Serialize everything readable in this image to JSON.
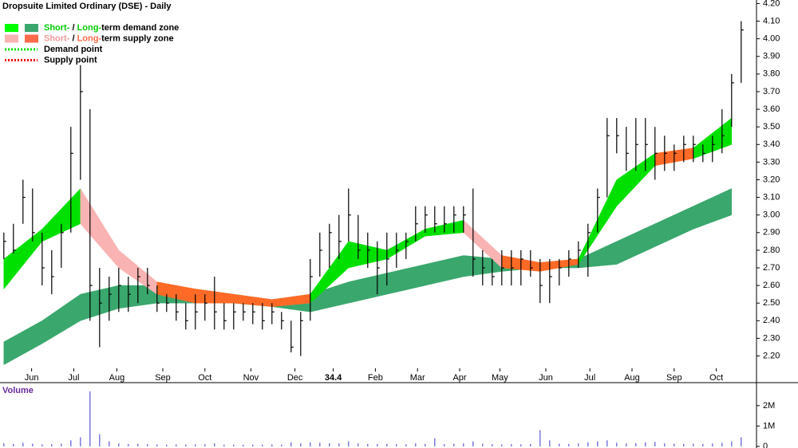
{
  "chart_data": [
    {
      "type": "ohlc",
      "title": "Dropsuite Limited Ordinary (DSE) - Daily",
      "legend": [
        {
          "swatches": [
            "#00ff00",
            "#3aa76d"
          ],
          "parts": [
            {
              "text": "Short-",
              "color": "#00cc00"
            },
            {
              "text": " / ",
              "color": "#000000"
            },
            {
              "text": "Long-",
              "color": "#00cc00"
            },
            {
              "text": "term demand zone",
              "color": "#000000"
            }
          ]
        },
        {
          "swatches": [
            "#f9b3b3",
            "#ff6a4a"
          ],
          "parts": [
            {
              "text": "Short-",
              "color": "#f49a9a"
            },
            {
              "text": " / ",
              "color": "#000000"
            },
            {
              "text": "Long-",
              "color": "#ff6a4a"
            },
            {
              "text": "term supply zone",
              "color": "#000000"
            }
          ]
        },
        {
          "dotted": "#00dd00",
          "parts": [
            {
              "text": "Demand point",
              "color": "#000000"
            }
          ]
        },
        {
          "dotted": "#ee0000",
          "parts": [
            {
              "text": "Supply point",
              "color": "#000000"
            }
          ]
        }
      ],
      "x": [
        0,
        1,
        2,
        3,
        4,
        5,
        6,
        7,
        8,
        9,
        10,
        11,
        12,
        13,
        14,
        15,
        16,
        17,
        18,
        19,
        20,
        21,
        22,
        23,
        24,
        25,
        26,
        27,
        28,
        29,
        30,
        31,
        32,
        33,
        34,
        35,
        36,
        37,
        38,
        39,
        40,
        41,
        42,
        43,
        44,
        45,
        46,
        47,
        48,
        49,
        50,
        51,
        52,
        53,
        54,
        55,
        56,
        57,
        58,
        59,
        60,
        61,
        62,
        63,
        64,
        65,
        66,
        67,
        68,
        69,
        70,
        71,
        72,
        73,
        74,
        75,
        76,
        77
      ],
      "high": [
        2.9,
        2.95,
        3.2,
        3.15,
        2.9,
        2.8,
        2.95,
        3.5,
        3.85,
        3.6,
        2.7,
        2.65,
        2.7,
        2.65,
        2.7,
        2.7,
        2.6,
        2.55,
        2.55,
        2.5,
        2.55,
        2.55,
        2.65,
        2.5,
        2.5,
        2.5,
        2.5,
        2.5,
        2.5,
        2.45,
        2.4,
        2.45,
        2.75,
        2.9,
        2.95,
        3.0,
        3.15,
        3.0,
        2.9,
        2.85,
        2.9,
        2.9,
        2.9,
        3.05,
        3.05,
        3.05,
        3.05,
        3.05,
        3.05,
        3.15,
        2.8,
        2.75,
        2.8,
        2.8,
        2.8,
        2.8,
        2.75,
        2.75,
        2.75,
        2.8,
        2.85,
        2.95,
        3.15,
        3.55,
        3.55,
        3.5,
        3.55,
        3.55,
        3.5,
        3.45,
        3.4,
        3.45,
        3.45,
        3.4,
        3.45,
        3.6,
        3.8,
        4.1
      ],
      "low": [
        2.75,
        2.78,
        2.95,
        2.85,
        2.6,
        2.55,
        2.7,
        2.9,
        3.2,
        2.4,
        2.25,
        2.4,
        2.45,
        2.45,
        2.5,
        2.55,
        2.45,
        2.45,
        2.4,
        2.35,
        2.35,
        2.4,
        2.35,
        2.35,
        2.35,
        2.4,
        2.38,
        2.35,
        2.38,
        2.35,
        2.22,
        2.2,
        2.4,
        2.65,
        2.7,
        2.75,
        2.85,
        2.75,
        2.7,
        2.55,
        2.6,
        2.7,
        2.75,
        2.85,
        2.9,
        2.9,
        2.9,
        2.9,
        2.9,
        2.65,
        2.6,
        2.6,
        2.6,
        2.6,
        2.6,
        2.65,
        2.5,
        2.5,
        2.6,
        2.65,
        2.7,
        2.65,
        2.9,
        3.1,
        3.35,
        3.25,
        3.25,
        3.25,
        3.2,
        3.25,
        3.25,
        3.3,
        3.3,
        3.3,
        3.3,
        3.35,
        3.5,
        3.75
      ],
      "close": [
        2.85,
        2.8,
        3.1,
        2.9,
        2.7,
        2.65,
        2.9,
        3.35,
        3.7,
        2.6,
        2.5,
        2.55,
        2.6,
        2.55,
        2.65,
        2.6,
        2.5,
        2.5,
        2.45,
        2.4,
        2.45,
        2.5,
        2.45,
        2.4,
        2.45,
        2.45,
        2.45,
        2.4,
        2.45,
        2.4,
        2.25,
        2.4,
        2.65,
        2.8,
        2.9,
        2.85,
        3.0,
        2.8,
        2.8,
        2.7,
        2.75,
        2.8,
        2.85,
        2.95,
        3.0,
        2.95,
        2.95,
        3.0,
        3.0,
        2.75,
        2.7,
        2.65,
        2.7,
        2.7,
        2.75,
        2.7,
        2.6,
        2.65,
        2.7,
        2.75,
        2.8,
        2.9,
        3.1,
        3.45,
        3.45,
        3.35,
        3.4,
        3.4,
        3.35,
        3.35,
        3.35,
        3.4,
        3.4,
        3.35,
        3.4,
        3.45,
        3.75,
        4.05
      ],
      "zones": [
        {
          "x": [
            0,
            4,
            8,
            12,
            16,
            20,
            24,
            28,
            32,
            36,
            40,
            44,
            48,
            52,
            56,
            60,
            64,
            68,
            72,
            76
          ],
          "upper": [
            2.28,
            2.4,
            2.55,
            2.6,
            2.6,
            2.58,
            2.55,
            2.52,
            2.55,
            2.62,
            2.67,
            2.72,
            2.77,
            2.75,
            2.73,
            2.75,
            2.85,
            2.95,
            3.05,
            3.15
          ],
          "lower": [
            2.15,
            2.27,
            2.4,
            2.47,
            2.5,
            2.5,
            2.5,
            2.48,
            2.45,
            2.5,
            2.55,
            2.6,
            2.65,
            2.68,
            2.7,
            2.7,
            2.72,
            2.82,
            2.92,
            3.0
          ],
          "colors": [
            "#3aa76d",
            "#3aa76d",
            "#3aa76d",
            "#3aa76d",
            "#3aa76d",
            "#3aa76d",
            "#3aa76d",
            "#3aa76d",
            "#3aa76d",
            "#3aa76d",
            "#3aa76d",
            "#3aa76d",
            "#3aa76d",
            "#3aa76d",
            "#3aa76d",
            "#3aa76d",
            "#3aa76d",
            "#3aa76d",
            "#3aa76d"
          ]
        },
        {
          "x": [
            0,
            4,
            8,
            12,
            16,
            20,
            24,
            28,
            32,
            36,
            40,
            44,
            48,
            52,
            56,
            60,
            64,
            68,
            72,
            76
          ],
          "upper": [
            2.75,
            2.92,
            3.15,
            2.8,
            2.62,
            2.58,
            2.55,
            2.52,
            2.55,
            2.85,
            2.8,
            2.92,
            2.97,
            2.77,
            2.73,
            2.75,
            3.2,
            3.35,
            3.38,
            3.55
          ],
          "lower": [
            2.58,
            2.85,
            2.95,
            2.7,
            2.55,
            2.5,
            2.5,
            2.48,
            2.5,
            2.7,
            2.75,
            2.88,
            2.9,
            2.7,
            2.68,
            2.72,
            3.05,
            3.28,
            3.32,
            3.4
          ],
          "colors": [
            "#00e000",
            "#00e000",
            "#f9b3b3",
            "#f9b3b3",
            "#ff6a26",
            "#ff6a26",
            "#ff6a26",
            "#ff6a26",
            "#00e000",
            "#00e000",
            "#00e000",
            "#00e000",
            "#f9b3b3",
            "#ff6a26",
            "#ff6a26",
            "#00e000",
            "#00e000",
            "#ff6a26",
            "#00e000"
          ]
        }
      ],
      "xlim": [
        -0.4,
        78.6
      ],
      "xticks": [
        {
          "value": 2.9,
          "label": "Jun"
        },
        {
          "value": 7.3,
          "label": "Jul"
        },
        {
          "value": 11.8,
          "label": "Aug"
        },
        {
          "value": 16.6,
          "label": "Sep"
        },
        {
          "value": 21,
          "label": "Oct"
        },
        {
          "value": 25.8,
          "label": "Nov"
        },
        {
          "value": 30.4,
          "label": "Dec"
        },
        34.4,
        {
          "value": 38.8,
          "label": "Feb"
        },
        {
          "value": 43.2,
          "label": "Mar"
        },
        {
          "value": 47.6,
          "label": "Apr"
        },
        {
          "value": 51.8,
          "label": "May"
        },
        {
          "value": 56.6,
          "label": "Jun"
        },
        {
          "value": 61.2,
          "label": "Jul"
        },
        {
          "value": 65.6,
          "label": "Aug"
        },
        {
          "value": 70,
          "label": "Sep"
        },
        {
          "value": 74.4,
          "label": "Oct"
        }
      ],
      "ylim": [
        2.13,
        4.22
      ],
      "yticks": [
        {
          "value": 2.2,
          "label": "2.20"
        },
        {
          "value": 2.3,
          "label": "2.30"
        },
        {
          "value": 2.4,
          "label": "2.40"
        },
        {
          "value": 2.5,
          "label": "2.50"
        },
        {
          "value": 2.6,
          "label": "2.60"
        },
        {
          "value": 2.7,
          "label": "2.70"
        },
        {
          "value": 2.8,
          "label": "2.80"
        },
        {
          "value": 2.9,
          "label": "2.90"
        },
        {
          "value": 3.0,
          "label": "3.00"
        },
        {
          "value": 3.1,
          "label": "3.10"
        },
        {
          "value": 3.2,
          "label": "3.20"
        },
        {
          "value": 3.3,
          "label": "3.30"
        },
        {
          "value": 3.4,
          "label": "3.40"
        },
        {
          "value": 3.5,
          "label": "3.50"
        },
        {
          "value": 3.6,
          "label": "3.60"
        },
        {
          "value": 3.7,
          "label": "3.70"
        },
        {
          "value": 3.8,
          "label": "3.80"
        },
        {
          "value": 3.9,
          "label": "3.90"
        },
        {
          "value": 4.0,
          "label": "4.00"
        },
        {
          "value": 4.1,
          "label": "4.10"
        },
        {
          "value": 4.2,
          "label": "4.20"
        }
      ],
      "color": "#000000"
    },
    {
      "type": "bar",
      "title": "Volume",
      "x": [
        0,
        1,
        2,
        3,
        4,
        5,
        6,
        7,
        8,
        9,
        10,
        11,
        12,
        13,
        14,
        15,
        16,
        17,
        18,
        19,
        20,
        21,
        22,
        23,
        24,
        25,
        26,
        27,
        28,
        29,
        30,
        31,
        32,
        33,
        34,
        35,
        36,
        37,
        38,
        39,
        40,
        41,
        42,
        43,
        44,
        45,
        46,
        47,
        48,
        49,
        50,
        51,
        52,
        53,
        54,
        55,
        56,
        57,
        58,
        59,
        60,
        61,
        62,
        63,
        64,
        65,
        66,
        67,
        68,
        69,
        70,
        71,
        72,
        73,
        74,
        75,
        76,
        77
      ],
      "values": [
        150000,
        120000,
        180000,
        130000,
        100000,
        110000,
        140000,
        300000,
        450000,
        2700000,
        600000,
        250000,
        150000,
        120000,
        130000,
        110000,
        100000,
        90000,
        100000,
        90000,
        100000,
        110000,
        150000,
        90000,
        90000,
        80000,
        90000,
        90000,
        100000,
        90000,
        200000,
        150000,
        200000,
        180000,
        160000,
        150000,
        250000,
        150000,
        120000,
        110000,
        120000,
        110000,
        100000,
        150000,
        120000,
        400000,
        110000,
        130000,
        150000,
        250000,
        130000,
        110000,
        100000,
        110000,
        100000,
        120000,
        800000,
        300000,
        130000,
        120000,
        150000,
        200000,
        250000,
        300000,
        180000,
        150000,
        160000,
        200000,
        220000,
        150000,
        130000,
        120000,
        130000,
        120000,
        140000,
        180000,
        250000,
        450000
      ],
      "xlim": [
        -0.4,
        78.6
      ],
      "ylim": [
        0,
        3050000
      ],
      "yticks": [
        0,
        {
          "value": 1000000,
          "label": "1M"
        },
        {
          "value": 2000000,
          "label": "2M"
        }
      ],
      "color": "#5b5bd6"
    }
  ]
}
